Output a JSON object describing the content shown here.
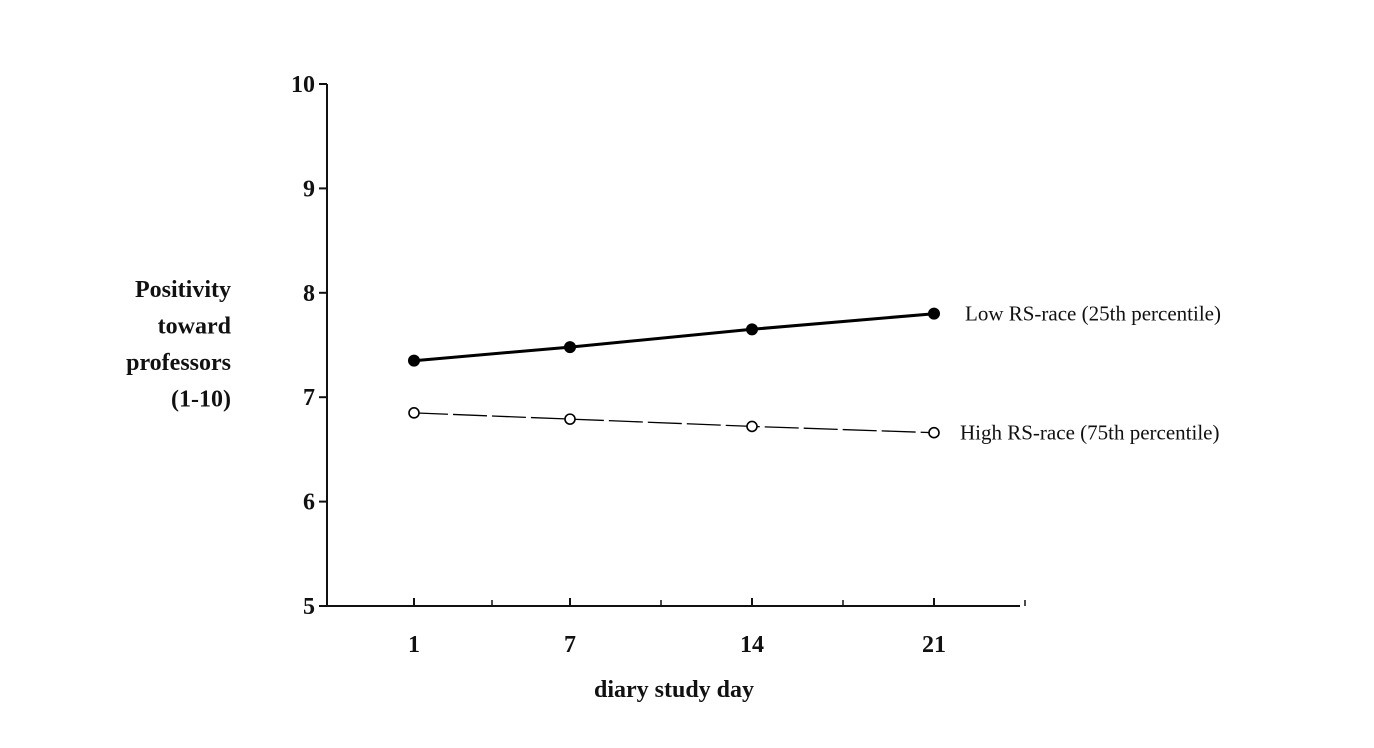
{
  "chart_data": {
    "type": "line",
    "title": "",
    "xlabel": "diary study day",
    "ylabel_lines": [
      "Positivity",
      "toward",
      "professors",
      "(1-10)"
    ],
    "categories": [
      "1",
      "7",
      "14",
      "21"
    ],
    "x": [
      1,
      7,
      14,
      21
    ],
    "xlim": [
      1,
      25
    ],
    "ylim": [
      5,
      10
    ],
    "yticks": [
      "5",
      "6",
      "7",
      "8",
      "9",
      "10"
    ],
    "grid": false,
    "series": [
      {
        "name": "Low RS-race (25th percentile)",
        "values": [
          7.35,
          7.48,
          7.65,
          7.8
        ],
        "marker": "filled-circle",
        "line": "solid",
        "color": "#000000"
      },
      {
        "name": "High RS-race (75th percentile)",
        "values": [
          6.85,
          6.79,
          6.72,
          6.66
        ],
        "marker": "open-circle",
        "line": "dashed",
        "color": "#000000"
      }
    ]
  }
}
